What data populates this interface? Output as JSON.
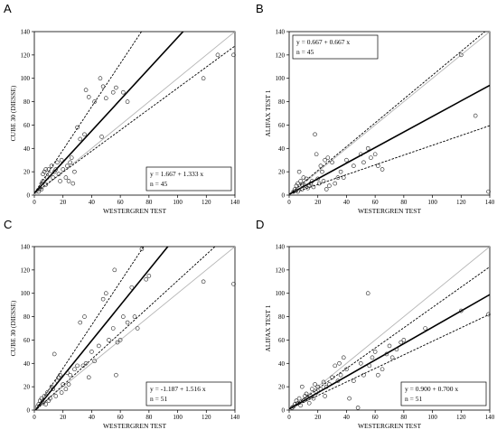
{
  "chart_data": [
    {
      "panel": "A",
      "type": "scatter",
      "xlabel": "WESTERGREN TEST",
      "ylabel": "CUBE 30 (DIESSE)",
      "xlim": [
        0,
        140
      ],
      "ylim": [
        0,
        140
      ],
      "xticks": [
        0,
        20,
        40,
        60,
        80,
        100,
        120,
        140
      ],
      "yticks": [
        0,
        20,
        40,
        60,
        80,
        100,
        120,
        140
      ],
      "annotation": {
        "equation": "y = 1.667 + 1.333 x",
        "n": "n = 45",
        "corner": "bottom-right"
      },
      "regression": {
        "intercept": 1.667,
        "slope": 1.333
      },
      "ci_lower_slope": 0.9,
      "ci_upper_slope": 1.85,
      "identity_line": true,
      "points": [
        [
          3,
          3
        ],
        [
          4,
          6
        ],
        [
          5,
          10
        ],
        [
          6,
          12
        ],
        [
          6,
          18
        ],
        [
          7,
          20
        ],
        [
          8,
          22
        ],
        [
          9,
          15
        ],
        [
          10,
          22
        ],
        [
          11,
          18
        ],
        [
          12,
          25
        ],
        [
          13,
          15
        ],
        [
          14,
          20
        ],
        [
          15,
          22
        ],
        [
          16,
          28
        ],
        [
          17,
          18
        ],
        [
          18,
          12
        ],
        [
          19,
          30
        ],
        [
          20,
          22
        ],
        [
          22,
          15
        ],
        [
          23,
          25
        ],
        [
          24,
          12
        ],
        [
          25,
          28
        ],
        [
          26,
          32
        ],
        [
          27,
          10
        ],
        [
          28,
          20
        ],
        [
          30,
          58
        ],
        [
          32,
          48
        ],
        [
          35,
          52
        ],
        [
          36,
          90
        ],
        [
          38,
          84
        ],
        [
          42,
          80
        ],
        [
          46,
          100
        ],
        [
          47,
          50
        ],
        [
          48,
          93
        ],
        [
          50,
          83
        ],
        [
          55,
          88
        ],
        [
          57,
          92
        ],
        [
          62,
          88
        ],
        [
          65,
          80
        ],
        [
          118,
          100
        ],
        [
          128,
          120
        ],
        [
          140,
          120
        ],
        [
          8,
          9
        ],
        [
          5,
          5
        ]
      ]
    },
    {
      "panel": "B",
      "type": "scatter",
      "xlabel": "WESTERGREN TEST",
      "ylabel": "ALIFAX TEST 1",
      "xlim": [
        0,
        140
      ],
      "ylim": [
        0,
        140
      ],
      "xticks": [
        0,
        20,
        40,
        60,
        80,
        100,
        120,
        140
      ],
      "yticks": [
        0,
        20,
        40,
        60,
        80,
        100,
        120,
        140
      ],
      "annotation": {
        "equation": "y = 0.667 + 0.667 x",
        "n": "n = 45",
        "corner": "top-left"
      },
      "regression": {
        "intercept": 0.667,
        "slope": 0.667
      },
      "ci_lower_slope": 0.42,
      "ci_upper_slope": 1.02,
      "identity_line": true,
      "points": [
        [
          3,
          3
        ],
        [
          4,
          5
        ],
        [
          5,
          8
        ],
        [
          6,
          10
        ],
        [
          7,
          20
        ],
        [
          8,
          12
        ],
        [
          9,
          5
        ],
        [
          10,
          15
        ],
        [
          11,
          8
        ],
        [
          12,
          14
        ],
        [
          13,
          6
        ],
        [
          14,
          8
        ],
        [
          15,
          10
        ],
        [
          16,
          12
        ],
        [
          17,
          7
        ],
        [
          18,
          52
        ],
        [
          19,
          35
        ],
        [
          20,
          14
        ],
        [
          21,
          10
        ],
        [
          22,
          25
        ],
        [
          23,
          20
        ],
        [
          24,
          12
        ],
        [
          25,
          30
        ],
        [
          26,
          5
        ],
        [
          27,
          32
        ],
        [
          28,
          8
        ],
        [
          30,
          28
        ],
        [
          32,
          10
        ],
        [
          34,
          15
        ],
        [
          36,
          20
        ],
        [
          38,
          15
        ],
        [
          40,
          30
        ],
        [
          45,
          25
        ],
        [
          50,
          35
        ],
        [
          52,
          28
        ],
        [
          55,
          40
        ],
        [
          57,
          32
        ],
        [
          60,
          35
        ],
        [
          62,
          25
        ],
        [
          65,
          22
        ],
        [
          120,
          120
        ],
        [
          130,
          68
        ],
        [
          140,
          3
        ],
        [
          6,
          3
        ],
        [
          9,
          9
        ]
      ]
    },
    {
      "panel": "C",
      "type": "scatter",
      "xlabel": "WESTERGREN TEST",
      "ylabel": "CUBE 30 (DIESSE)",
      "xlim": [
        0,
        140
      ],
      "ylim": [
        0,
        140
      ],
      "xticks": [
        0,
        20,
        40,
        60,
        80,
        100,
        120,
        140
      ],
      "yticks": [
        0,
        20,
        40,
        60,
        80,
        100,
        120,
        140
      ],
      "annotation": {
        "equation": "y = -1.187 + 1.516 x",
        "n": "n = 51",
        "corner": "bottom-right"
      },
      "regression": {
        "intercept": -1.187,
        "slope": 1.516
      },
      "ci_lower_slope": 1.12,
      "ci_upper_slope": 1.85,
      "identity_line": true,
      "points": [
        [
          2,
          3
        ],
        [
          3,
          5
        ],
        [
          4,
          8
        ],
        [
          5,
          10
        ],
        [
          6,
          6
        ],
        [
          7,
          12
        ],
        [
          8,
          5
        ],
        [
          9,
          15
        ],
        [
          10,
          8
        ],
        [
          11,
          10
        ],
        [
          12,
          20
        ],
        [
          13,
          18
        ],
        [
          14,
          48
        ],
        [
          15,
          12
        ],
        [
          16,
          25
        ],
        [
          17,
          28
        ],
        [
          18,
          30
        ],
        [
          19,
          15
        ],
        [
          20,
          22
        ],
        [
          22,
          18
        ],
        [
          23,
          32
        ],
        [
          25,
          30
        ],
        [
          28,
          35
        ],
        [
          30,
          38
        ],
        [
          32,
          75
        ],
        [
          34,
          38
        ],
        [
          35,
          80
        ],
        [
          36,
          40
        ],
        [
          38,
          28
        ],
        [
          40,
          50
        ],
        [
          42,
          42
        ],
        [
          45,
          55
        ],
        [
          48,
          95
        ],
        [
          50,
          100
        ],
        [
          52,
          60
        ],
        [
          55,
          70
        ],
        [
          56,
          120
        ],
        [
          57,
          30
        ],
        [
          58,
          58
        ],
        [
          60,
          60
        ],
        [
          62,
          80
        ],
        [
          65,
          75
        ],
        [
          68,
          105
        ],
        [
          70,
          80
        ],
        [
          72,
          70
        ],
        [
          75,
          138
        ],
        [
          78,
          112
        ],
        [
          80,
          115
        ],
        [
          118,
          110
        ],
        [
          140,
          108
        ],
        [
          24,
          22
        ]
      ]
    },
    {
      "panel": "D",
      "type": "scatter",
      "xlabel": "WESTERGREN TEST",
      "ylabel": "ALIFAX TEST 1",
      "xlim": [
        0,
        140
      ],
      "ylim": [
        0,
        140
      ],
      "xticks": [
        0,
        20,
        40,
        60,
        80,
        100,
        120,
        140
      ],
      "yticks": [
        0,
        20,
        40,
        60,
        80,
        100,
        120,
        140
      ],
      "annotation": {
        "equation": "y = 0.900 + 0.700 x",
        "n": "n = 51",
        "corner": "bottom-right"
      },
      "regression": {
        "intercept": 0.9,
        "slope": 0.7
      },
      "ci_lower_slope": 0.58,
      "ci_upper_slope": 0.87,
      "identity_line": true,
      "points": [
        [
          2,
          2
        ],
        [
          3,
          3
        ],
        [
          4,
          5
        ],
        [
          5,
          8
        ],
        [
          6,
          6
        ],
        [
          7,
          10
        ],
        [
          8,
          4
        ],
        [
          9,
          20
        ],
        [
          10,
          8
        ],
        [
          11,
          12
        ],
        [
          12,
          14
        ],
        [
          13,
          10
        ],
        [
          14,
          6
        ],
        [
          15,
          12
        ],
        [
          16,
          18
        ],
        [
          17,
          10
        ],
        [
          18,
          22
        ],
        [
          19,
          15
        ],
        [
          20,
          20
        ],
        [
          22,
          18
        ],
        [
          24,
          24
        ],
        [
          25,
          12
        ],
        [
          28,
          22
        ],
        [
          30,
          28
        ],
        [
          32,
          38
        ],
        [
          34,
          25
        ],
        [
          35,
          40
        ],
        [
          36,
          30
        ],
        [
          38,
          45
        ],
        [
          40,
          35
        ],
        [
          42,
          10
        ],
        [
          45,
          25
        ],
        [
          48,
          2
        ],
        [
          50,
          40
        ],
        [
          52,
          30
        ],
        [
          55,
          100
        ],
        [
          56,
          38
        ],
        [
          58,
          45
        ],
        [
          60,
          50
        ],
        [
          62,
          30
        ],
        [
          65,
          35
        ],
        [
          68,
          48
        ],
        [
          70,
          55
        ],
        [
          72,
          45
        ],
        [
          75,
          52
        ],
        [
          78,
          58
        ],
        [
          80,
          60
        ],
        [
          95,
          70
        ],
        [
          120,
          85
        ],
        [
          140,
          82
        ],
        [
          26,
          20
        ]
      ]
    }
  ],
  "panels": {
    "A": {
      "letter": "A"
    },
    "B": {
      "letter": "B"
    },
    "C": {
      "letter": "C"
    },
    "D": {
      "letter": "D"
    }
  }
}
